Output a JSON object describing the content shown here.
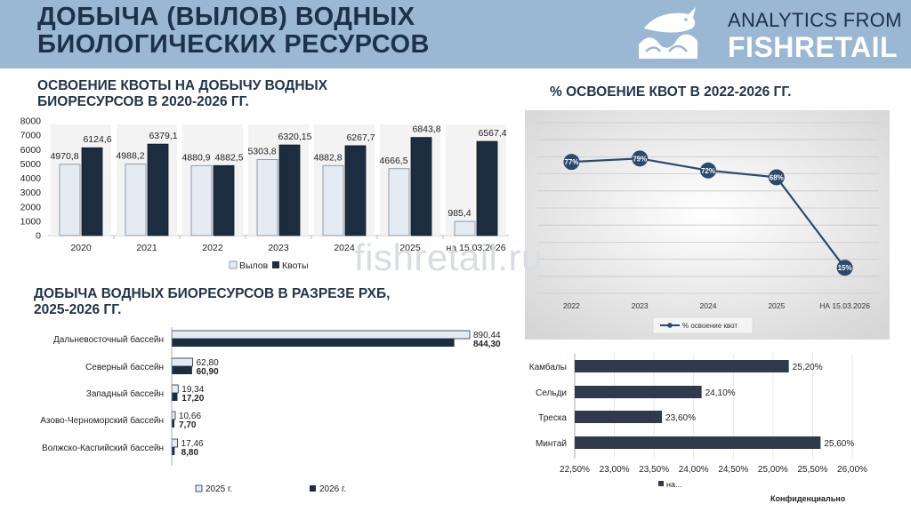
{
  "header": {
    "title_line1": "ДОБЫЧА (ВЫЛОВ) ВОДНЫХ",
    "title_line2": "БИОЛОГИЧЕСКИХ РЕСУРСОВ",
    "brand_top": "ANALYTICS FROM",
    "brand_bottom": "FISHRETAIL",
    "logo_icon": "fish-wave-logo"
  },
  "sections": {
    "quota_title_line1": "ОСВОЕНИЕ КВОТЫ НА ДОБЫЧУ ВОДНЫХ",
    "quota_title_line2": "БИОРЕСУРСОВ  В 2020-2026 ГГ.",
    "percent_title": "% ОСВОЕНИЕ  КВОТ  В 2022-2026 ГГ.",
    "basin_title_line1": "ДОБЫЧА ВОДНЫХ БИОРЕСУРСОВ  В РАЗРЕЗЕ РХБ,",
    "basin_title_line2": "2025-2026 ГГ."
  },
  "watermark": "fishretail.ru",
  "footer": {
    "confidential": "Конфиденциально"
  },
  "colors": {
    "header_bg": "#9ab7d3",
    "dark_navy": "#1d2d40",
    "light_bar": "#e4ebf2",
    "line_navy": "#2c4a6e",
    "panel_gray": "#e6e6e6"
  },
  "chart_data": [
    {
      "type": "bar",
      "categories": [
        "2020",
        "2021",
        "2022",
        "2023",
        "2024",
        "2025",
        "на 15.03.2026"
      ],
      "series": [
        {
          "name": "Вылов",
          "values": [
            4970.8,
            4988.2,
            4880.9,
            5303.8,
            4882.8,
            4666.5,
            985.4
          ],
          "labels": [
            "4970,8",
            "4988,2",
            "4880,9",
            "5303,8",
            "4882,8",
            "4666,5",
            "985,4"
          ],
          "color": "#e4ebf2"
        },
        {
          "name": "Квоты",
          "values": [
            6124.6,
            6379.1,
            4882.5,
            6320.15,
            6267.7,
            6843.8,
            6567.4
          ],
          "labels": [
            "6124,6",
            "6379,1",
            "4882,5",
            "6320,15",
            "6267,7",
            "6843,8",
            "6567,4"
          ],
          "color": "#1d2d40"
        }
      ],
      "ylim": [
        0,
        8000
      ],
      "yticks": [
        "0",
        "1000",
        "2000",
        "3000",
        "4000",
        "5000",
        "6000",
        "7000",
        "8000"
      ],
      "legend": "bottom",
      "grid": false
    },
    {
      "type": "line",
      "categories": [
        "2022",
        "2023",
        "2024",
        "2025",
        "НА 15.03.2026"
      ],
      "series": [
        {
          "name": "% освоение квот",
          "values": [
            77,
            79,
            72,
            68,
            15
          ],
          "labels": [
            "77%",
            "79%",
            "72%",
            "68%",
            "15%"
          ]
        }
      ],
      "ylim": [
        0,
        100
      ],
      "legend": "bottom",
      "grid": true
    },
    {
      "type": "bar",
      "orientation": "horizontal",
      "categories": [
        "Дальневосточный бассейн",
        "Северный бассейн",
        "Западный бассейн",
        "Азово-Черноморский  бассейн",
        "Волжско-Каспийский бассейн"
      ],
      "series": [
        {
          "name": "2025 г.",
          "values": [
            890.44,
            62.8,
            19.34,
            10.66,
            17.46
          ],
          "labels": [
            "890,44",
            "62,80",
            "19,34",
            "10,66",
            "17,46"
          ]
        },
        {
          "name": "2026 г.",
          "values": [
            844.3,
            60.9,
            17.2,
            7.7,
            8.8
          ],
          "labels": [
            "844,30",
            "60,90",
            "17,20",
            "7,70",
            "8,80"
          ]
        }
      ],
      "legend": "bottom",
      "grid": false
    },
    {
      "type": "bar",
      "orientation": "horizontal",
      "categories": [
        "Камбалы",
        "Сельди",
        "Треска",
        "Минтай"
      ],
      "series": [
        {
          "name": "на...",
          "values": [
            25.2,
            24.1,
            23.6,
            25.6
          ],
          "labels": [
            "25,20%",
            "24,10%",
            "23,60%",
            "25,60%"
          ]
        }
      ],
      "xlim": [
        22.5,
        26.0
      ],
      "xticks": [
        "22,50%",
        "23,00%",
        "23,50%",
        "24,00%",
        "24,50%",
        "25,00%",
        "25,50%",
        "26,00%"
      ],
      "legend": "bottom",
      "grid": true
    }
  ]
}
